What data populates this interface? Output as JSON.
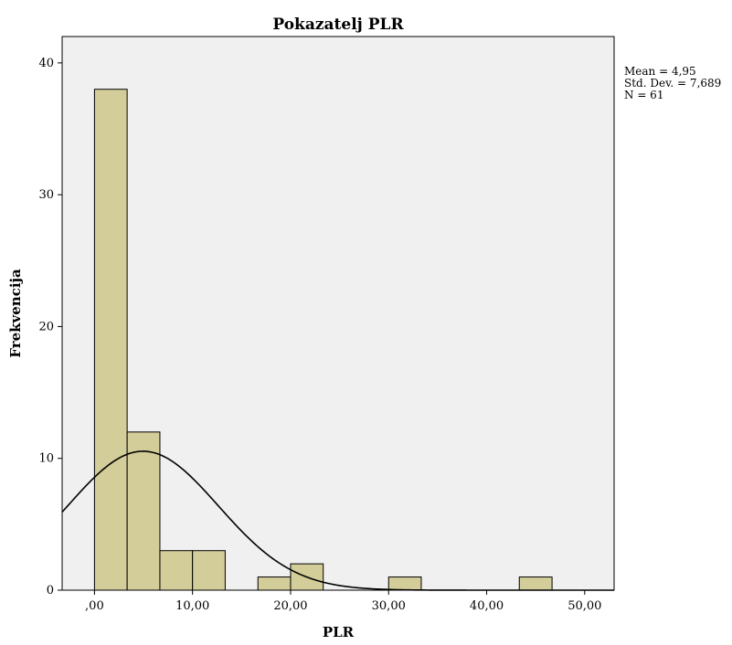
{
  "chart_data": {
    "type": "bar",
    "title": "Pokazatelj PLR",
    "xlabel": "PLR",
    "ylabel": "Frekvencija",
    "x_ticks": [
      ",00",
      "10,00",
      "20,00",
      "30,00",
      "40,00",
      "50,00"
    ],
    "y_ticks": [
      "0",
      "10",
      "20",
      "30",
      "40"
    ],
    "xlim": [
      -3.3,
      53.0
    ],
    "ylim": [
      0,
      42
    ],
    "bin_width": 3.33,
    "bins": [
      {
        "start": 0.0,
        "end": 3.33,
        "count": 38
      },
      {
        "start": 3.33,
        "end": 6.67,
        "count": 12
      },
      {
        "start": 6.67,
        "end": 10.0,
        "count": 3
      },
      {
        "start": 10.0,
        "end": 13.33,
        "count": 3
      },
      {
        "start": 16.67,
        "end": 20.0,
        "count": 1
      },
      {
        "start": 20.0,
        "end": 23.33,
        "count": 2
      },
      {
        "start": 30.0,
        "end": 33.33,
        "count": 1
      },
      {
        "start": 43.33,
        "end": 46.67,
        "count": 1
      }
    ],
    "normal_curve": {
      "mean": 4.95,
      "std_dev": 7.689,
      "n": 61
    },
    "stats_text": [
      "Mean = 4,95",
      "Std. Dev. = 7,689",
      "N = 61"
    ],
    "colors": {
      "bar_fill": "#d3cd9a",
      "bar_stroke": "#000000",
      "plot_background": "#f0f0f0",
      "curve": "#000000"
    }
  }
}
